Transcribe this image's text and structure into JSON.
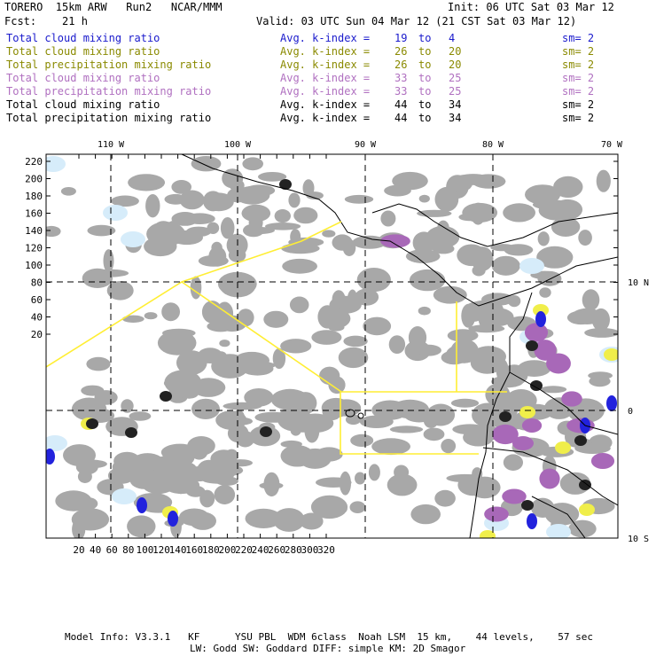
{
  "header": {
    "model": "TORERO  15km ARW   Run2   NCAR/MMM",
    "init": "Init: 06 UTC Sat 03 Mar 12",
    "fcst": "Fcst:    21 h",
    "valid": "Valid: 03 UTC Sun 04 Mar 12 (21 CST Sat 03 Mar 12)"
  },
  "legend": [
    {
      "field": "Total cloud mixing ratio",
      "avg_label": "Avg. k-index =",
      "k_from": "19",
      "to_word": "to",
      "k_to": "4",
      "sm": "sm= 2",
      "color": "#1a1acc"
    },
    {
      "field": "Total cloud mixing ratio",
      "avg_label": "Avg. k-index =",
      "k_from": "26",
      "to_word": "to",
      "k_to": "20",
      "sm": "sm= 2",
      "color": "#8a8a00"
    },
    {
      "field": "Total precipitation mixing ratio",
      "avg_label": "Avg. k-index =",
      "k_from": "26",
      "to_word": "to",
      "k_to": "20",
      "sm": "sm= 2",
      "color": "#8a8a00"
    },
    {
      "field": "Total cloud mixing ratio",
      "avg_label": "Avg. k-index =",
      "k_from": "33",
      "to_word": "to",
      "k_to": "25",
      "sm": "sm= 2",
      "color": "#b070c0"
    },
    {
      "field": "Total precipitation mixing ratio",
      "avg_label": "Avg. k-index =",
      "k_from": "33",
      "to_word": "to",
      "k_to": "25",
      "sm": "sm= 2",
      "color": "#b070c0"
    },
    {
      "field": "Total cloud mixing ratio",
      "avg_label": "Avg. k-index =",
      "k_from": "44",
      "to_word": "to",
      "k_to": "34",
      "sm": "sm= 2",
      "color": "#000000"
    },
    {
      "field": "Total precipitation mixing ratio",
      "avg_label": "Avg. k-index =",
      "k_from": "44",
      "to_word": "to",
      "k_to": "34",
      "sm": "sm= 2",
      "color": "#000000"
    }
  ],
  "map": {
    "longitude_labels": [
      "110 W",
      "100 W",
      "90 W",
      "80 W",
      "70 W"
    ],
    "latitude_labels": [
      "10 N",
      "0",
      "10 S"
    ],
    "grid_y_labels": [
      "220",
      "200",
      "180",
      "160",
      "140",
      "120",
      "100",
      "80",
      "60",
      "40",
      "20"
    ],
    "grid_x_labels": [
      "20",
      "40",
      "60",
      "80",
      "100",
      "120",
      "140",
      "160",
      "180",
      "200",
      "220",
      "240",
      "260",
      "280",
      "300",
      "320"
    ],
    "colors": {
      "cloud_gray": "#a8a8a8",
      "light_blue": "#d6ecfa",
      "blue": "#2222dd",
      "yellow": "#f0ee4a",
      "purple": "#a868b8",
      "dark": "#222222",
      "box": "#ffee33"
    }
  },
  "footer": {
    "line1": "Model Info: V3.3.1   KF      YSU PBL  WDM 6class  Noah LSM  15 km,    44 levels,    57 sec",
    "line2": "LW: Godd SW: Goddard DIFF: simple KM: 2D Smagor"
  }
}
